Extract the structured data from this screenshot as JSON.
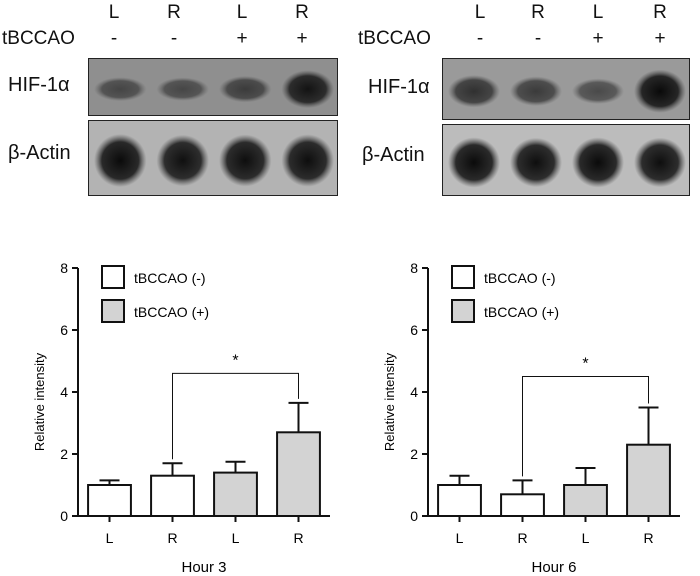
{
  "blots": [
    {
      "lanes": [
        "L",
        "R",
        "L",
        "R"
      ],
      "treatment_label": "tBCCAO",
      "treatment": [
        "-",
        "-",
        "+",
        "+"
      ],
      "rows": [
        {
          "protein": "HIF-1α",
          "intensity": [
            0.3,
            0.28,
            0.4,
            0.85
          ]
        },
        {
          "protein": "β-Actin",
          "intensity": [
            0.95,
            0.9,
            0.92,
            0.93
          ]
        }
      ]
    },
    {
      "lanes": [
        "L",
        "R",
        "L",
        "R"
      ],
      "treatment_label": "tBCCAO",
      "treatment": [
        "-",
        "-",
        "+",
        "+"
      ],
      "rows": [
        {
          "protein": "HIF-1α",
          "intensity": [
            0.55,
            0.45,
            0.3,
            0.95
          ]
        },
        {
          "protein": "β-Actin",
          "intensity": [
            0.95,
            0.92,
            0.95,
            0.93
          ]
        }
      ]
    }
  ],
  "chart_data": [
    {
      "type": "bar",
      "title": "",
      "xlabel": "Hour 3",
      "ylabel": "Relative intensity",
      "ylim": [
        0,
        8
      ],
      "yticks": [
        0,
        2,
        4,
        6,
        8
      ],
      "categories": [
        "L",
        "R",
        "L",
        "R"
      ],
      "values": [
        1.0,
        1.3,
        1.4,
        2.7
      ],
      "errors": [
        0.15,
        0.4,
        0.35,
        0.95
      ],
      "groups": [
        "tBCCAO (-)",
        "tBCCAO (-)",
        "tBCCAO (+)",
        "tBCCAO (+)"
      ],
      "legend": [
        {
          "name": "tBCCAO (-)",
          "color": "#ffffff"
        },
        {
          "name": "tBCCAO (+)",
          "color": "#d3d3d3"
        }
      ],
      "legend_position": "top-left",
      "significance": {
        "from": 1,
        "to": 3,
        "label": "*",
        "y": 4.6
      }
    },
    {
      "type": "bar",
      "title": "",
      "xlabel": "Hour 6",
      "ylabel": "Relative intensity",
      "ylim": [
        0,
        8
      ],
      "yticks": [
        0,
        2,
        4,
        6,
        8
      ],
      "categories": [
        "L",
        "R",
        "L",
        "R"
      ],
      "values": [
        1.0,
        0.7,
        1.0,
        2.3
      ],
      "errors": [
        0.3,
        0.45,
        0.55,
        1.2
      ],
      "groups": [
        "tBCCAO (-)",
        "tBCCAO (-)",
        "tBCCAO (+)",
        "tBCCAO (+)"
      ],
      "legend": [
        {
          "name": "tBCCAO (-)",
          "color": "#ffffff"
        },
        {
          "name": "tBCCAO (+)",
          "color": "#d3d3d3"
        }
      ],
      "legend_position": "top-left",
      "significance": {
        "from": 1,
        "to": 3,
        "label": "*",
        "y": 4.5
      }
    }
  ]
}
